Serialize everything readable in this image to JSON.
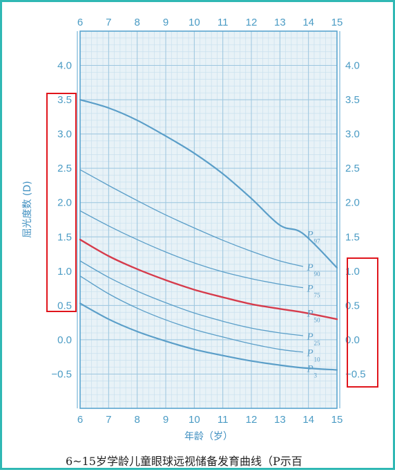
{
  "caption": "6~15岁学龄儿童眼球远视储备发育曲线（P示百",
  "colors": {
    "background": "#e8f2f7",
    "grid_minor": "#c8e0ee",
    "grid_major": "#9cc6df",
    "axis": "#5aa4cf",
    "tick_text": "#4a9bc4",
    "curve": "#5a9ec8",
    "p50_curve": "#d63b4b",
    "highlight": "#e0141b",
    "frame": "#2fb8b4"
  },
  "chart_data": {
    "type": "line",
    "title": "",
    "xlabel": "年龄（岁）",
    "ylabel": "屈光度数 (D)",
    "xlim": [
      6,
      15
    ],
    "ylim": [
      -1.0,
      4.5
    ],
    "x_ticks": [
      "6",
      "7",
      "8",
      "9",
      "10",
      "11",
      "12",
      "13",
      "14",
      "15"
    ],
    "y_ticks": [
      "4.0",
      "3.5",
      "3.0",
      "2.5",
      "2.0",
      "1.5",
      "1.0",
      "0.5",
      "0.0",
      "−0.5"
    ],
    "grid": true,
    "series": [
      {
        "name": "P97",
        "label": "P",
        "sub": "97",
        "x": [
          6,
          7,
          8,
          9,
          10,
          11,
          12,
          13,
          13.8,
          15
        ],
        "values": [
          3.5,
          3.38,
          3.2,
          2.97,
          2.72,
          2.42,
          2.06,
          1.67,
          1.55,
          1.05
        ]
      },
      {
        "name": "P90",
        "label": "P",
        "sub": "90",
        "x": [
          6,
          7,
          8,
          9,
          10,
          11,
          12,
          13,
          13.8
        ],
        "values": [
          2.48,
          2.25,
          2.03,
          1.82,
          1.63,
          1.45,
          1.29,
          1.15,
          1.07
        ]
      },
      {
        "name": "P75",
        "label": "P",
        "sub": "75",
        "x": [
          6,
          7,
          8,
          9,
          10,
          11,
          12,
          13,
          13.8
        ],
        "values": [
          1.88,
          1.66,
          1.46,
          1.28,
          1.12,
          0.99,
          0.89,
          0.81,
          0.76
        ]
      },
      {
        "name": "P50",
        "label": "P",
        "sub": "50",
        "x": [
          6,
          7,
          8,
          9,
          10,
          11,
          12,
          13,
          13.8,
          15
        ],
        "values": [
          1.46,
          1.22,
          1.03,
          0.87,
          0.73,
          0.62,
          0.52,
          0.45,
          0.4,
          0.3
        ]
      },
      {
        "name": "P25",
        "label": "P",
        "sub": "25",
        "x": [
          6,
          7,
          8,
          9,
          10,
          11,
          12,
          13,
          13.8
        ],
        "values": [
          1.15,
          0.91,
          0.71,
          0.54,
          0.39,
          0.27,
          0.17,
          0.1,
          0.06
        ]
      },
      {
        "name": "P10",
        "label": "P",
        "sub": "10",
        "x": [
          6,
          7,
          8,
          9,
          10,
          11,
          12,
          13,
          13.8
        ],
        "values": [
          0.93,
          0.67,
          0.46,
          0.29,
          0.15,
          0.04,
          -0.06,
          -0.14,
          -0.18
        ]
      },
      {
        "name": "P3",
        "label": "P",
        "sub": "3",
        "x": [
          6,
          7,
          8,
          9,
          10,
          11,
          12,
          13,
          13.8,
          15
        ],
        "values": [
          0.53,
          0.3,
          0.12,
          -0.02,
          -0.14,
          -0.23,
          -0.31,
          -0.37,
          -0.41,
          -0.44
        ]
      }
    ],
    "highlights": [
      {
        "axis": "left",
        "range": [
          0.4,
          3.6
        ]
      },
      {
        "axis": "right",
        "range": [
          -0.7,
          1.2
        ]
      }
    ]
  }
}
